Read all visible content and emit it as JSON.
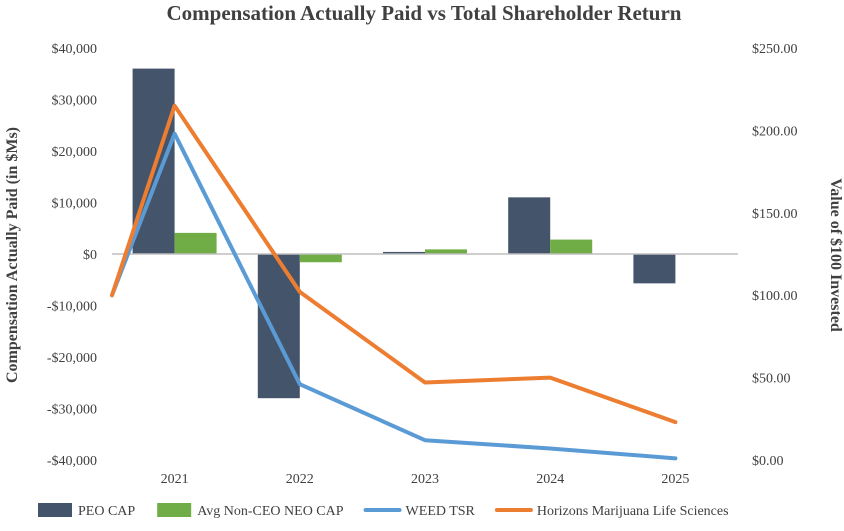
{
  "chart_data": {
    "type": "bar",
    "title": "Compensation Actually Paid vs Total Shareholder Return",
    "categories": [
      "2021",
      "2022",
      "2023",
      "2024",
      "2025"
    ],
    "ylabel": "Compensation Actually Paid (in $Ms)",
    "y2label": "Value of $100 Invested",
    "ylim": [
      -40000,
      40000
    ],
    "y2lim": [
      0,
      250
    ],
    "yticks": [
      {
        "value": 40000,
        "label": "$40,000"
      },
      {
        "value": 30000,
        "label": "$30,000"
      },
      {
        "value": 20000,
        "label": "$20,000"
      },
      {
        "value": 10000,
        "label": "$10,000"
      },
      {
        "value": 0,
        "label": "$0"
      },
      {
        "value": -10000,
        "label": "-$10,000"
      },
      {
        "value": -20000,
        "label": "-$20,000"
      },
      {
        "value": -30000,
        "label": "-$30,000"
      },
      {
        "value": -40000,
        "label": "-$40,000"
      }
    ],
    "y2ticks": [
      {
        "value": 250,
        "label": "$250.00"
      },
      {
        "value": 200,
        "label": "$200.00"
      },
      {
        "value": 150,
        "label": "$150.00"
      },
      {
        "value": 100,
        "label": "$100.00"
      },
      {
        "value": 50,
        "label": "$50.00"
      },
      {
        "value": 0,
        "label": "$0.00"
      }
    ],
    "bar_series": [
      {
        "name": "PEO CAP",
        "color": "#44546a",
        "values": [
          36000,
          -28000,
          400,
          11000,
          -5700
        ]
      },
      {
        "name": "Avg Non-CEO NEO CAP",
        "color": "#70ad47",
        "values": [
          4100,
          -1600,
          900,
          2800,
          0
        ]
      }
    ],
    "line_series": [
      {
        "name": "WEED TSR",
        "color": "#5b9bd5",
        "start": 100,
        "values": [
          198,
          46,
          12,
          7,
          1
        ]
      },
      {
        "name": "Horizons Marijuana Life Sciences",
        "color": "#ed7d31",
        "start": 100,
        "values": [
          215,
          102,
          47,
          50,
          23
        ]
      }
    ],
    "legend_position": "bottom"
  }
}
